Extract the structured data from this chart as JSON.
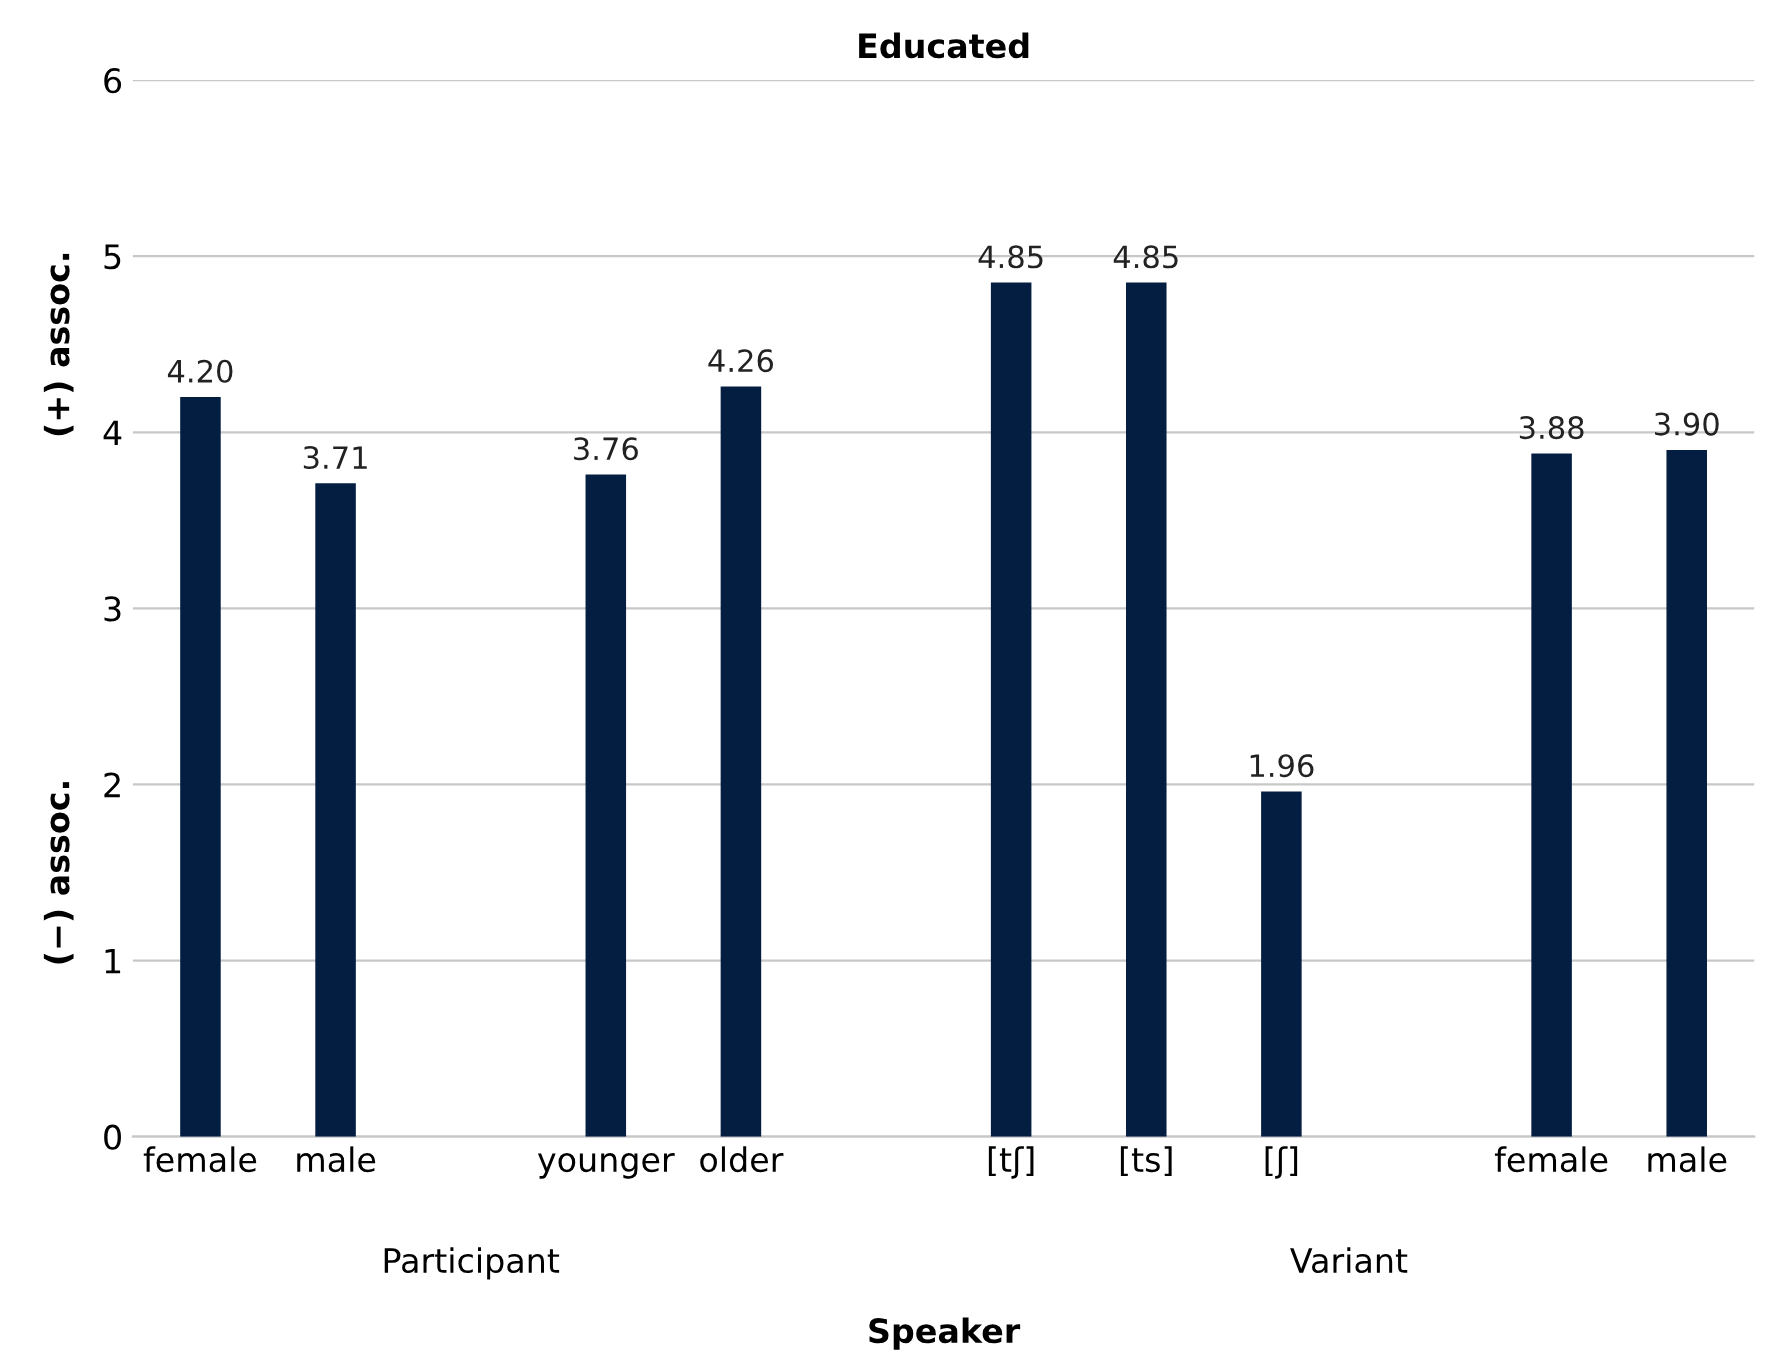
{
  "chart_data": {
    "type": "bar",
    "title": "Educated",
    "xlabel": "Speaker",
    "categories": [
      "female",
      "male",
      null,
      "younger",
      "older",
      null,
      "[tʃ]",
      "[ts]",
      "[ʃ]",
      null,
      "female",
      "male"
    ],
    "values": [
      4.2,
      3.71,
      null,
      3.76,
      4.26,
      null,
      4.85,
      4.85,
      1.96,
      null,
      3.88,
      3.9
    ],
    "value_labels": [
      "4.20",
      "3.71",
      null,
      "3.76",
      "4.26",
      null,
      "4.85",
      "4.85",
      "1.96",
      null,
      "3.88",
      "3.90"
    ],
    "color": "#041e42",
    "ylim": [
      0,
      6
    ],
    "yticks": [
      0,
      1,
      2,
      3,
      4,
      5,
      6
    ],
    "grid": "y",
    "annotations": [
      "(−) assoc.",
      "(+) assoc.",
      "Participant",
      "Variant"
    ]
  }
}
